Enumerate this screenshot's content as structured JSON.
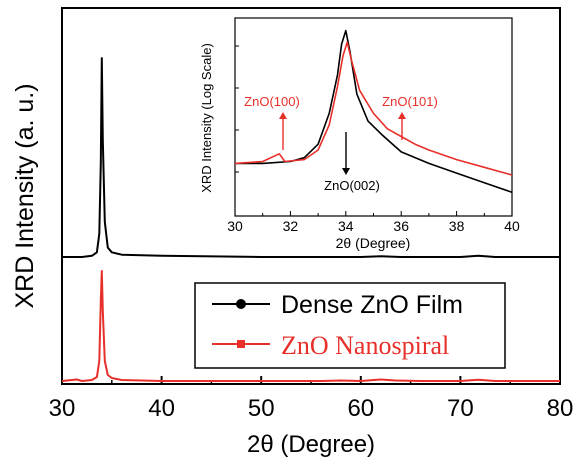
{
  "chart_data": [
    {
      "type": "line",
      "title": "",
      "xlabel": "2θ (Degree)",
      "ylabel": "XRD Intensity (a. u.)",
      "xlim": [
        30,
        80
      ],
      "x_ticks": [
        "30",
        "40",
        "50",
        "60",
        "70",
        "80"
      ],
      "y_ticks": [],
      "grid": false,
      "legend_position": "bottom-center",
      "series": [
        {
          "name": "Dense ZnO Film",
          "color": "#000000",
          "marker": "circle",
          "points": [
            [
              30,
              100
            ],
            [
              32,
              100
            ],
            [
              33,
              101
            ],
            [
              33.5,
              104
            ],
            [
              33.75,
              120
            ],
            [
              33.9,
              180
            ],
            [
              34.0,
              270
            ],
            [
              34.1,
              200
            ],
            [
              34.3,
              130
            ],
            [
              34.6,
              108
            ],
            [
              35,
              104
            ],
            [
              36,
              102
            ],
            [
              40,
              101
            ],
            [
              50,
              100
            ],
            [
              60,
              100
            ],
            [
              62,
              100.6
            ],
            [
              64,
              100
            ],
            [
              70,
              100
            ],
            [
              71.8,
              101
            ],
            [
              73.5,
              100
            ],
            [
              80,
              100
            ]
          ]
        },
        {
          "name": "ZnO Nanospiral",
          "color": "#e8302a",
          "marker": "square",
          "points": [
            [
              30,
              100
            ],
            [
              31.5,
              101.5
            ],
            [
              32,
              100
            ],
            [
              33,
              101
            ],
            [
              33.5,
              104
            ],
            [
              33.75,
              120
            ],
            [
              33.9,
              180
            ],
            [
              34.0,
              210
            ],
            [
              34.1,
              170
            ],
            [
              34.3,
              120
            ],
            [
              34.6,
              106
            ],
            [
              35,
              103
            ],
            [
              36,
              101
            ],
            [
              40,
              100
            ],
            [
              50,
              100
            ],
            [
              56,
              100
            ],
            [
              58,
              100.5
            ],
            [
              60,
              100
            ],
            [
              62,
              101.5
            ],
            [
              63.5,
              100.5
            ],
            [
              66,
              100
            ],
            [
              70,
              100
            ],
            [
              71.8,
              101.2
            ],
            [
              73.5,
              100
            ],
            [
              80,
              100
            ]
          ]
        }
      ]
    },
    {
      "type": "line",
      "title": "",
      "xlabel": "2θ (Degree)",
      "ylabel": "XRD Intensity (Log Scale)",
      "xlim": [
        30,
        40
      ],
      "x_ticks": [
        "30",
        "32",
        "34",
        "36",
        "38",
        "40"
      ],
      "y_scale": "log",
      "grid": false,
      "annotations": [
        {
          "text": "ZnO(100)",
          "x": 31.6,
          "color": "#e8302a"
        },
        {
          "text": "ZnO(101)",
          "x": 36.1,
          "color": "#e8302a"
        },
        {
          "text": "ZnO(002)",
          "x": 34.0,
          "color": "#000000"
        }
      ],
      "series": [
        {
          "name": "Dense ZnO Film",
          "color": "#000000",
          "points": [
            [
              30,
              2.3
            ],
            [
              31,
              2.3
            ],
            [
              32,
              2.35
            ],
            [
              32.5,
              2.45
            ],
            [
              33,
              2.8
            ],
            [
              33.4,
              3.6
            ],
            [
              33.7,
              4.6
            ],
            [
              33.85,
              5.4
            ],
            [
              34.0,
              5.75
            ],
            [
              34.15,
              5.2
            ],
            [
              34.4,
              4.1
            ],
            [
              34.8,
              3.4
            ],
            [
              35.3,
              3.05
            ],
            [
              36,
              2.6
            ],
            [
              37,
              2.3
            ],
            [
              38,
              2.05
            ],
            [
              39,
              1.8
            ],
            [
              40,
              1.55
            ]
          ]
        },
        {
          "name": "ZnO Nanospiral",
          "color": "#e8302a",
          "points": [
            [
              30,
              2.3
            ],
            [
              31,
              2.35
            ],
            [
              31.6,
              2.55
            ],
            [
              31.8,
              2.35
            ],
            [
              32.5,
              2.4
            ],
            [
              33,
              2.65
            ],
            [
              33.4,
              3.3
            ],
            [
              33.7,
              4.3
            ],
            [
              33.9,
              5.1
            ],
            [
              34.05,
              5.45
            ],
            [
              34.2,
              5.0
            ],
            [
              34.5,
              4.2
            ],
            [
              35,
              3.6
            ],
            [
              35.5,
              3.2
            ],
            [
              36,
              3.0
            ],
            [
              36.5,
              2.8
            ],
            [
              37,
              2.65
            ],
            [
              38,
              2.4
            ],
            [
              39,
              2.2
            ],
            [
              40,
              2.0
            ]
          ]
        }
      ]
    }
  ]
}
